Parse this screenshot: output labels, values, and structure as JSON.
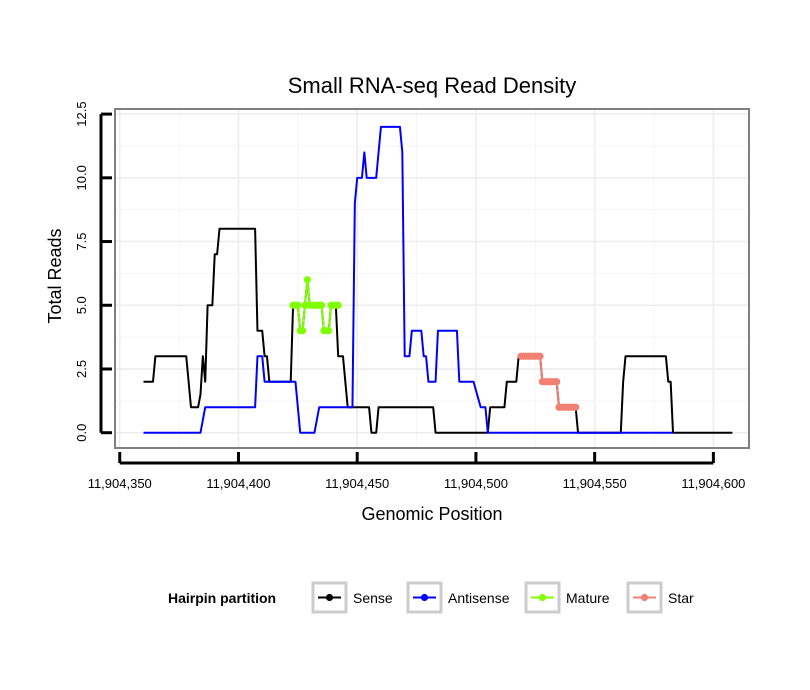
{
  "chart_data": {
    "type": "line",
    "title": "Small RNA-seq Read Density",
    "xlabel": "Genomic Position",
    "ylabel": "Total Reads",
    "xlim": [
      11904348,
      11904615
    ],
    "ylim": [
      -0.6,
      12.7
    ],
    "x_ticks": [
      11904350,
      11904400,
      11904450,
      11904500,
      11904550,
      11904600
    ],
    "x_tick_labels": [
      "11,904,350",
      "11,904,400",
      "11,904,450",
      "11,904,500",
      "11,904,550",
      "11,904,600"
    ],
    "y_ticks": [
      0,
      2.5,
      5,
      7.5,
      10,
      12.5
    ],
    "y_tick_labels": [
      "0.0",
      "2.5",
      "5.0",
      "7.5",
      "10.0",
      "12.5"
    ],
    "legend": {
      "title": "Hairpin partition",
      "placement": "bottom",
      "entries": [
        "Sense",
        "Antisense",
        "Mature",
        "Star"
      ]
    },
    "series": [
      {
        "name": "Sense",
        "color": "#000000",
        "style": "line",
        "points": [
          [
            11904360,
            2
          ],
          [
            11904364,
            2
          ],
          [
            11904365,
            3
          ],
          [
            11904378,
            3
          ],
          [
            11904380,
            1
          ],
          [
            11904383,
            1
          ],
          [
            11904384,
            1.5
          ],
          [
            11904385,
            3
          ],
          [
            11904386,
            2
          ],
          [
            11904387,
            5
          ],
          [
            11904389,
            5
          ],
          [
            11904390,
            7
          ],
          [
            11904391,
            7
          ],
          [
            11904392,
            8
          ],
          [
            11904407,
            8
          ],
          [
            11904408,
            4
          ],
          [
            11904410,
            4
          ],
          [
            11904411,
            3
          ],
          [
            11904412,
            3
          ],
          [
            11904413,
            2
          ],
          [
            11904422,
            2
          ],
          [
            11904423,
            5
          ],
          [
            11904425,
            5
          ],
          [
            11904426,
            4
          ],
          [
            11904427,
            4
          ],
          [
            11904428,
            5
          ],
          [
            11904429,
            6
          ],
          [
            11904430,
            5
          ],
          [
            11904435,
            5
          ],
          [
            11904436,
            4
          ],
          [
            11904438,
            4
          ],
          [
            11904439,
            5
          ],
          [
            11904441,
            5
          ],
          [
            11904442,
            3
          ],
          [
            11904444,
            3
          ],
          [
            11904445,
            2
          ],
          [
            11904446,
            1
          ],
          [
            11904455,
            1
          ],
          [
            11904456,
            0
          ],
          [
            11904458,
            0
          ],
          [
            11904459,
            1
          ],
          [
            11904482,
            1
          ],
          [
            11904483,
            0
          ],
          [
            11904505,
            0
          ],
          [
            11904506,
            1
          ],
          [
            11904512,
            1
          ],
          [
            11904513,
            2
          ],
          [
            11904517,
            2
          ],
          [
            11904518,
            3
          ],
          [
            11904527,
            3
          ],
          [
            11904528,
            2
          ],
          [
            11904534,
            2
          ],
          [
            11904535,
            1
          ],
          [
            11904542,
            1
          ],
          [
            11904543,
            0
          ],
          [
            11904561,
            0
          ],
          [
            11904562,
            2
          ],
          [
            11904563,
            3
          ],
          [
            11904580,
            3
          ],
          [
            11904581,
            2
          ],
          [
            11904582,
            2
          ],
          [
            11904583,
            0
          ],
          [
            11904608,
            0
          ]
        ]
      },
      {
        "name": "Antisense",
        "color": "#0000ff",
        "style": "line",
        "points": [
          [
            11904360,
            0
          ],
          [
            11904384,
            0
          ],
          [
            11904386,
            1
          ],
          [
            11904407,
            1
          ],
          [
            11904408,
            3
          ],
          [
            11904410,
            3
          ],
          [
            11904411,
            2
          ],
          [
            11904424,
            2
          ],
          [
            11904426,
            0
          ],
          [
            11904432,
            0
          ],
          [
            11904434,
            1
          ],
          [
            11904448,
            1
          ],
          [
            11904449,
            9
          ],
          [
            11904450,
            10
          ],
          [
            11904452,
            10
          ],
          [
            11904453,
            11
          ],
          [
            11904454,
            10
          ],
          [
            11904458,
            10
          ],
          [
            11904460,
            12
          ],
          [
            11904468,
            12
          ],
          [
            11904469,
            11
          ],
          [
            11904470,
            3
          ],
          [
            11904472,
            3
          ],
          [
            11904473,
            4
          ],
          [
            11904477,
            4
          ],
          [
            11904478,
            3
          ],
          [
            11904479,
            3
          ],
          [
            11904480,
            2
          ],
          [
            11904483,
            2
          ],
          [
            11904484,
            4
          ],
          [
            11904492,
            4
          ],
          [
            11904493,
            2
          ],
          [
            11904499,
            2
          ],
          [
            11904502,
            1
          ],
          [
            11904504,
            1
          ],
          [
            11904505,
            0
          ],
          [
            11904583,
            0
          ]
        ]
      },
      {
        "name": "Mature",
        "color": "#7fff00",
        "style": "points",
        "points": [
          [
            11904423,
            5
          ],
          [
            11904424,
            5
          ],
          [
            11904425,
            5
          ],
          [
            11904426,
            4
          ],
          [
            11904427,
            4
          ],
          [
            11904428,
            5
          ],
          [
            11904429,
            6
          ],
          [
            11904430,
            5
          ],
          [
            11904431,
            5
          ],
          [
            11904432,
            5
          ],
          [
            11904433,
            5
          ],
          [
            11904434,
            5
          ],
          [
            11904435,
            5
          ],
          [
            11904436,
            4
          ],
          [
            11904437,
            4
          ],
          [
            11904438,
            4
          ],
          [
            11904439,
            5
          ],
          [
            11904440,
            5
          ],
          [
            11904441,
            5
          ],
          [
            11904442,
            5
          ]
        ]
      },
      {
        "name": "Star",
        "color": "#f08070",
        "style": "points",
        "points": [
          [
            11904519,
            3
          ],
          [
            11904520,
            3
          ],
          [
            11904521,
            3
          ],
          [
            11904522,
            3
          ],
          [
            11904523,
            3
          ],
          [
            11904524,
            3
          ],
          [
            11904525,
            3
          ],
          [
            11904526,
            3
          ],
          [
            11904527,
            3
          ],
          [
            11904528,
            2
          ],
          [
            11904529,
            2
          ],
          [
            11904530,
            2
          ],
          [
            11904531,
            2
          ],
          [
            11904532,
            2
          ],
          [
            11904533,
            2
          ],
          [
            11904534,
            2
          ],
          [
            11904535,
            1
          ],
          [
            11904536,
            1
          ],
          [
            11904537,
            1
          ],
          [
            11904538,
            1
          ],
          [
            11904539,
            1
          ],
          [
            11904540,
            1
          ],
          [
            11904541,
            1
          ],
          [
            11904542,
            1
          ]
        ]
      }
    ]
  }
}
